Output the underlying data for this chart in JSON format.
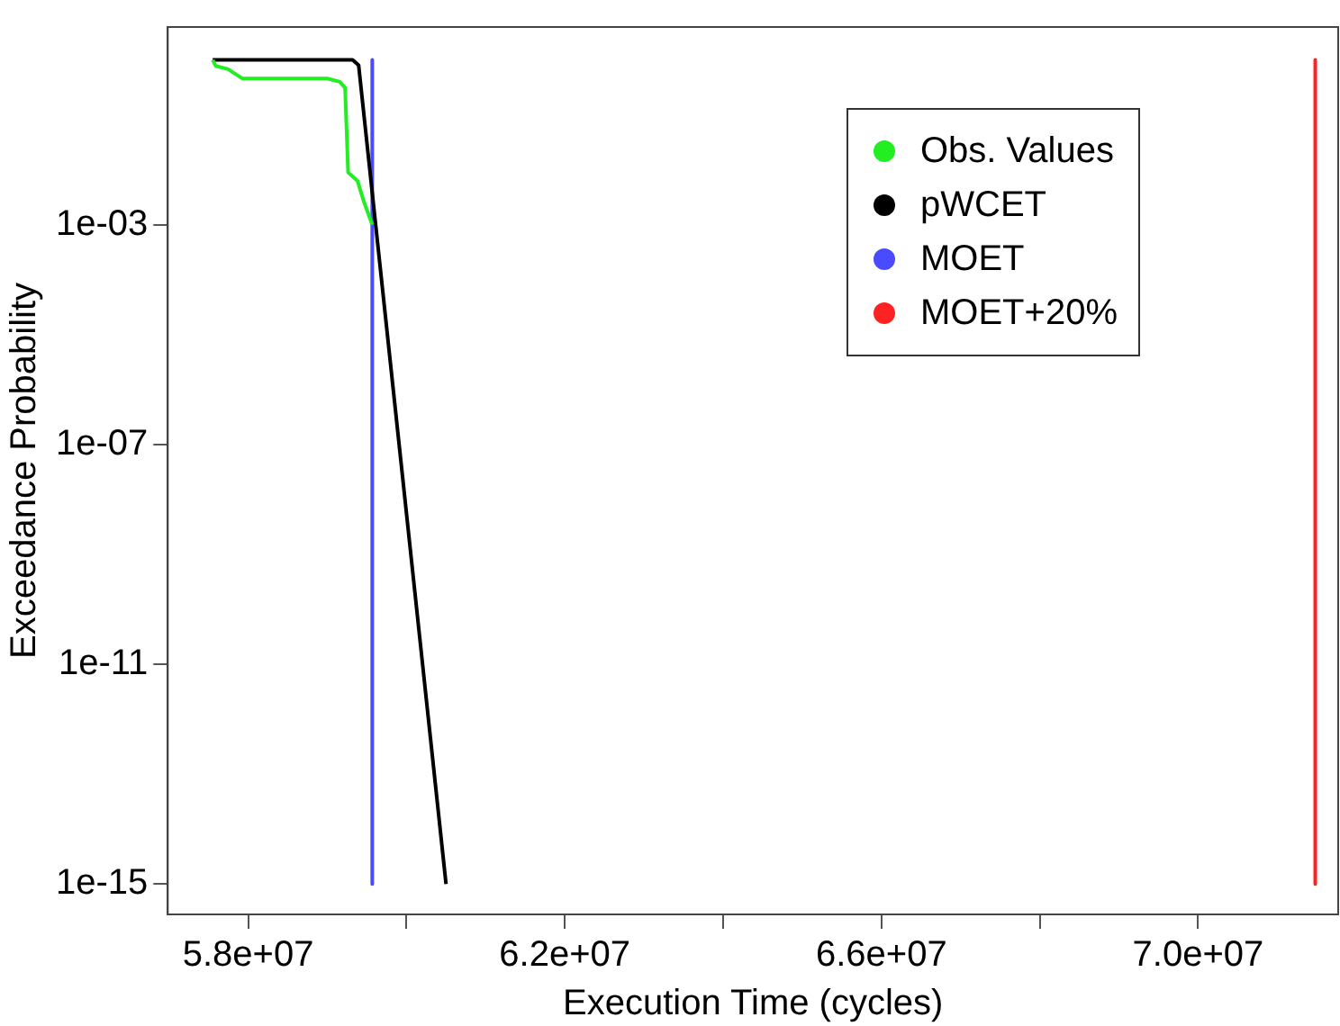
{
  "chart_data": {
    "type": "line",
    "xlabel": "Execution Time (cycles)",
    "ylabel": "Exceedance Probability",
    "log": "y",
    "grid": false,
    "legend": "top right",
    "marker": "none",
    "line_style": "solid",
    "xlim": [
      56985000,
      71770000
    ],
    "xticks": [
      {
        "value": 58000000,
        "label": "5.8e+07"
      },
      {
        "value": 60000000,
        "label": null
      },
      {
        "value": 62000000,
        "label": "6.2e+07"
      },
      {
        "value": 64000000,
        "label": null
      },
      {
        "value": 66000000,
        "label": "6.6e+07"
      },
      {
        "value": 68000000,
        "label": null
      },
      {
        "value": 70000000,
        "label": "7.0e+07"
      }
    ],
    "ylim": [
      2.8e-16,
      3.98
    ],
    "yticks": [
      {
        "value": 0.001,
        "label": "1e-03"
      },
      {
        "value": 1e-07,
        "label": "1e-07"
      },
      {
        "value": 1e-11,
        "label": "1e-11"
      },
      {
        "value": 1e-15,
        "label": "1e-15"
      }
    ],
    "series": [
      {
        "name": "Obs. Values",
        "color": "#22ee22",
        "x": [
          57552000,
          57590000,
          57747000,
          57926000,
          59001000,
          59158000,
          59225000,
          59263000,
          59382000,
          59456000,
          59568000
        ],
        "values": [
          1,
          0.78,
          0.68,
          0.46,
          0.46,
          0.4,
          0.31,
          0.009,
          0.0063,
          0.0028,
          0.001
        ]
      },
      {
        "name": "pWCET",
        "color": "#000000",
        "x": [
          57552000,
          59320000,
          59396000,
          60500000
        ],
        "values": [
          1,
          1,
          0.8,
          1e-15
        ]
      },
      {
        "name": "MOET",
        "color": "#4a4aff",
        "x": [
          59568000,
          59568000
        ],
        "values": [
          1,
          1e-15
        ]
      },
      {
        "name": "MOET+20%",
        "color": "#ff2222",
        "x": [
          71480000,
          71480000
        ],
        "values": [
          1,
          1e-15
        ]
      }
    ]
  }
}
